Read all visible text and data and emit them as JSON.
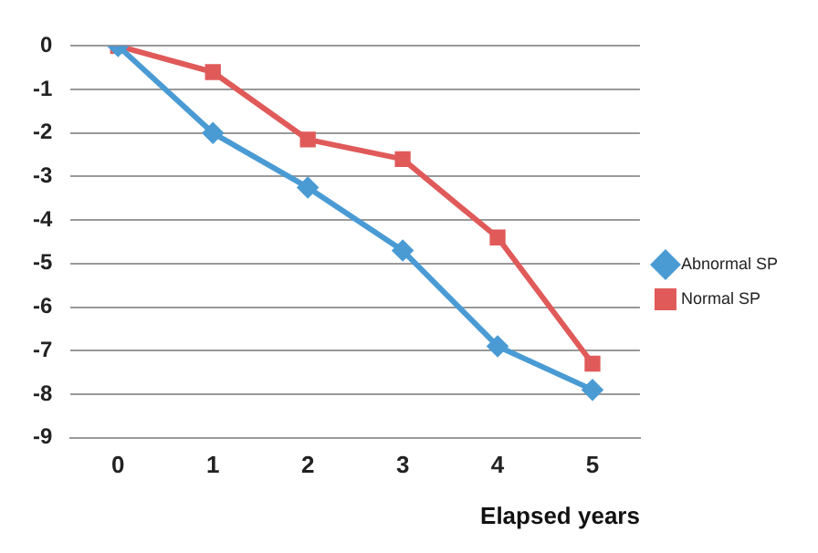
{
  "chart_data": {
    "type": "line",
    "xlabel": "Elapsed years",
    "categories": [
      "0",
      "1",
      "2",
      "3",
      "4",
      "5"
    ],
    "series": [
      {
        "name": "Abnormal SP",
        "color": "#4a9bd4",
        "marker": "diamond",
        "values": [
          0,
          -2.0,
          -3.25,
          -4.7,
          -6.9,
          -7.9
        ]
      },
      {
        "name": "Normal SP",
        "color": "#e05a5a",
        "marker": "square",
        "values": [
          0,
          -0.6,
          -2.15,
          -2.6,
          -4.4,
          -7.3
        ]
      }
    ],
    "ylim": [
      -9,
      0
    ],
    "yticks": [
      0,
      -1,
      -2,
      -3,
      -4,
      -5,
      -6,
      -7,
      -8,
      -9
    ],
    "grid": "y",
    "legend": "right"
  }
}
